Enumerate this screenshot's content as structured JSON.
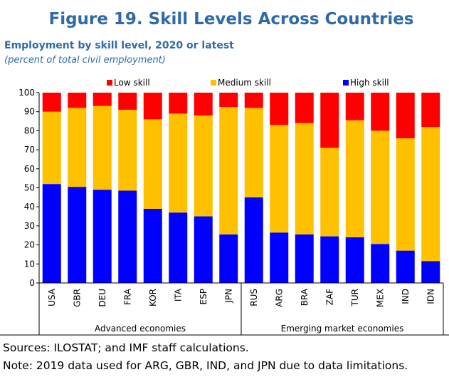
{
  "chart_data": {
    "type": "stacked_bar",
    "title": "Figure 19. Skill Levels Across Countries",
    "subtitle": "Employment by skill level, 2020 or latest",
    "unit_note": "(percent of total civil employment)",
    "groups": [
      {
        "label": "Advanced economies",
        "categories": [
          "USA",
          "GBR",
          "DEU",
          "FRA",
          "KOR",
          "ITA",
          "ESP",
          "JPN"
        ]
      },
      {
        "label": "Emerging market economies",
        "categories": [
          "RUS",
          "ARG",
          "BRA",
          "ZAF",
          "TUR",
          "MEX",
          "IND",
          "IDN"
        ]
      }
    ],
    "series": [
      {
        "name": "Low skill",
        "color": "#ff0000",
        "values": [
          10,
          8,
          7,
          9,
          14,
          11,
          12,
          7.5,
          8,
          17,
          16,
          29,
          14.5,
          20,
          24,
          18
        ]
      },
      {
        "name": "Medium skill",
        "color": "#ffc000",
        "values": [
          38,
          41.5,
          44,
          42.5,
          47,
          52,
          53,
          67,
          47,
          56.5,
          58.5,
          46.5,
          61.5,
          59.5,
          59,
          70.5
        ]
      },
      {
        "name": "High skill",
        "color": "#0000ff",
        "values": [
          52,
          50.5,
          49,
          48.5,
          39,
          37,
          35,
          25.5,
          45,
          26.5,
          25.5,
          24.5,
          24,
          20.5,
          17,
          11.5
        ]
      }
    ],
    "ylim": [
      0,
      100
    ],
    "yticks": [
      0,
      10,
      20,
      30,
      40,
      50,
      60,
      70,
      80,
      90,
      100
    ],
    "legend": "top",
    "sources": "Sources: ILOSTAT; and IMF staff calculations.",
    "note": "Note: 2019 data used for ARG, GBR, IND, and JPN due to data limitations."
  }
}
